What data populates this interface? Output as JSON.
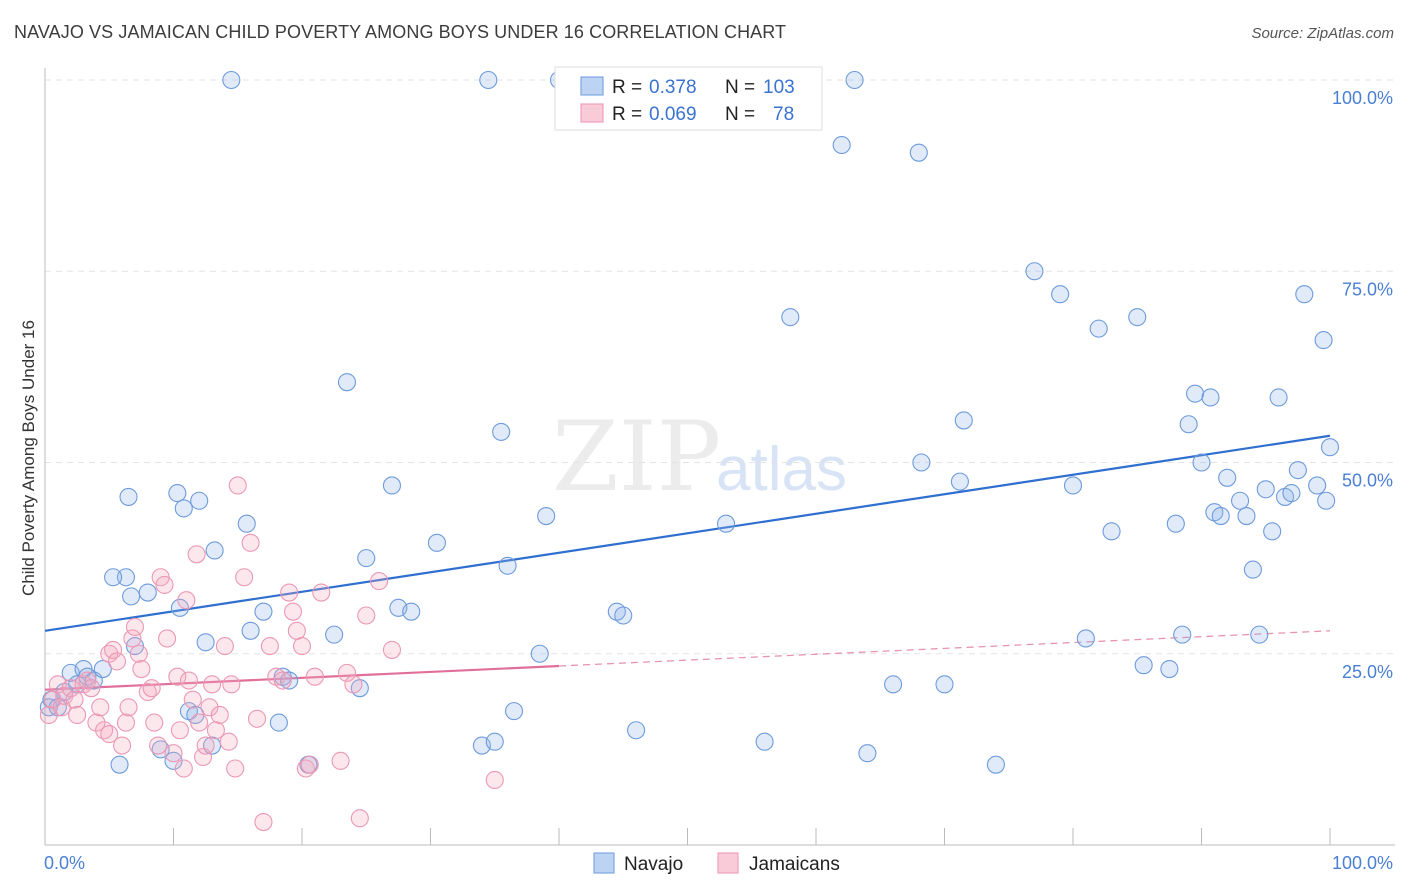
{
  "title": "NAVAJO VS JAMAICAN CHILD POVERTY AMONG BOYS UNDER 16 CORRELATION CHART",
  "source": "Source: ZipAtlas.com",
  "watermark": {
    "zip": "ZIP",
    "atlas": "atlas"
  },
  "chart_data": {
    "type": "scatter",
    "title": "NAVAJO VS JAMAICAN CHILD POVERTY AMONG BOYS UNDER 16 CORRELATION CHART",
    "ylabel": "Child Poverty Among Boys Under 16",
    "xlabel": "",
    "xlim": [
      0,
      100
    ],
    "ylim": [
      0,
      100
    ],
    "x_tick_labels": [
      "0.0%",
      "100.0%"
    ],
    "y_tick_labels": [
      "25.0%",
      "50.0%",
      "75.0%",
      "100.0%"
    ],
    "y_ticks": [
      25,
      50,
      75,
      100
    ],
    "grid": "horizontal dashed",
    "legend_position": "top-center",
    "stats": [
      {
        "series": "Navajo",
        "r_label": "R =",
        "r": "0.378",
        "n_label": "N =",
        "n": "103"
      },
      {
        "series": "Jamaicans",
        "r_label": "R =",
        "r": "0.069",
        "n_label": "N =",
        "n": "78"
      }
    ],
    "series": [
      {
        "name": "Navajo",
        "color": "#8fb4e8",
        "line_color": "#2f6fd0",
        "trend": {
          "x": [
            0,
            100
          ],
          "y": [
            28.0,
            53.5
          ],
          "style": "solid"
        },
        "points": [
          [
            0.3,
            18
          ],
          [
            0.5,
            19
          ],
          [
            1,
            18
          ],
          [
            1.5,
            20
          ],
          [
            2,
            22.5
          ],
          [
            2.5,
            21
          ],
          [
            3,
            23
          ],
          [
            3.3,
            22
          ],
          [
            3.8,
            21.5
          ],
          [
            4.5,
            23
          ],
          [
            5.8,
            10.5
          ],
          [
            6.3,
            35
          ],
          [
            5.3,
            35
          ],
          [
            6.5,
            45.5
          ],
          [
            6.7,
            32.5
          ],
          [
            7,
            26
          ],
          [
            8,
            33
          ],
          [
            9,
            12.5
          ],
          [
            10,
            11
          ],
          [
            10.3,
            46
          ],
          [
            10.8,
            44
          ],
          [
            10.5,
            31
          ],
          [
            11.2,
            17.5
          ],
          [
            11.7,
            17
          ],
          [
            12,
            45
          ],
          [
            12.5,
            26.5
          ],
          [
            13,
            13
          ],
          [
            13.2,
            38.5
          ],
          [
            14.5,
            100
          ],
          [
            15.7,
            42
          ],
          [
            16,
            28
          ],
          [
            17,
            30.5
          ],
          [
            18.2,
            16
          ],
          [
            18.5,
            22
          ],
          [
            19,
            21.5
          ],
          [
            20.5,
            10.5
          ],
          [
            22.5,
            27.5
          ],
          [
            23.5,
            60.5
          ],
          [
            24.5,
            20.5
          ],
          [
            25,
            37.5
          ],
          [
            27,
            47
          ],
          [
            27.5,
            31
          ],
          [
            28.5,
            30.5
          ],
          [
            30.5,
            39.5
          ],
          [
            34,
            13
          ],
          [
            34.5,
            100
          ],
          [
            35,
            13.5
          ],
          [
            35.5,
            54
          ],
          [
            36,
            36.5
          ],
          [
            36.5,
            17.5
          ],
          [
            38.5,
            25
          ],
          [
            39,
            43
          ],
          [
            40,
            100
          ],
          [
            44.5,
            30.5
          ],
          [
            45,
            30
          ],
          [
            46,
            15
          ],
          [
            53,
            42
          ],
          [
            56,
            13.5
          ],
          [
            58,
            69
          ],
          [
            62,
            91.5
          ],
          [
            63,
            100
          ],
          [
            64,
            12
          ],
          [
            66,
            21
          ],
          [
            68,
            90.5
          ],
          [
            68.2,
            50
          ],
          [
            70,
            21
          ],
          [
            71.2,
            47.5
          ],
          [
            71.5,
            55.5
          ],
          [
            74,
            10.5
          ],
          [
            77,
            75
          ],
          [
            79,
            72
          ],
          [
            80,
            47
          ],
          [
            81,
            27
          ],
          [
            82,
            67.5
          ],
          [
            83,
            41
          ],
          [
            85,
            69
          ],
          [
            85.5,
            23.5
          ],
          [
            87.5,
            23
          ],
          [
            88,
            42
          ],
          [
            88.5,
            27.5
          ],
          [
            89,
            55
          ],
          [
            89.5,
            59
          ],
          [
            90,
            50
          ],
          [
            90.7,
            58.5
          ],
          [
            91,
            43.5
          ],
          [
            91.5,
            43
          ],
          [
            92,
            48
          ],
          [
            93,
            45
          ],
          [
            93.5,
            43
          ],
          [
            94,
            36
          ],
          [
            94.5,
            27.5
          ],
          [
            95,
            46.5
          ],
          [
            95.5,
            41
          ],
          [
            96,
            58.5
          ],
          [
            96.5,
            45.5
          ],
          [
            97,
            46
          ],
          [
            97.5,
            49
          ],
          [
            98,
            72
          ],
          [
            99,
            47
          ],
          [
            99.5,
            66
          ],
          [
            99.7,
            45
          ],
          [
            100,
            52
          ]
        ]
      },
      {
        "name": "Jamaicans",
        "color": "#f3a8c0",
        "line_color": "#e0709a",
        "trend": {
          "x": [
            0,
            40
          ],
          "y": [
            20.3,
            23.4
          ],
          "style": "solid"
        },
        "trend_extension": {
          "x": [
            40,
            100
          ],
          "y": [
            23.4,
            28.0
          ],
          "style": "dashed"
        },
        "points": [
          [
            0.3,
            17
          ],
          [
            0.6,
            19
          ],
          [
            1,
            21
          ],
          [
            1.3,
            18
          ],
          [
            1.5,
            19.5
          ],
          [
            2,
            20.5
          ],
          [
            2.3,
            19
          ],
          [
            2.5,
            17
          ],
          [
            3,
            21
          ],
          [
            3.3,
            21.5
          ],
          [
            3.6,
            20.5
          ],
          [
            4,
            16
          ],
          [
            4.3,
            18
          ],
          [
            4.6,
            15
          ],
          [
            5,
            14.5
          ],
          [
            5,
            25
          ],
          [
            5.3,
            25.5
          ],
          [
            5.6,
            24
          ],
          [
            6,
            13
          ],
          [
            6.3,
            16
          ],
          [
            6.5,
            18
          ],
          [
            6.8,
            27
          ],
          [
            7,
            28.5
          ],
          [
            7.3,
            25
          ],
          [
            7.5,
            23
          ],
          [
            8,
            20
          ],
          [
            8.3,
            20.5
          ],
          [
            8.5,
            16
          ],
          [
            8.8,
            13
          ],
          [
            9,
            35
          ],
          [
            9.3,
            34
          ],
          [
            9.5,
            27
          ],
          [
            10,
            12
          ],
          [
            10.3,
            22
          ],
          [
            10.5,
            15
          ],
          [
            10.8,
            10
          ],
          [
            11,
            32
          ],
          [
            11.2,
            21.5
          ],
          [
            11.5,
            19
          ],
          [
            11.8,
            38
          ],
          [
            12,
            16
          ],
          [
            12.3,
            11.5
          ],
          [
            12.5,
            13
          ],
          [
            12.8,
            18
          ],
          [
            13,
            21
          ],
          [
            13.3,
            15
          ],
          [
            13.6,
            17
          ],
          [
            14,
            26
          ],
          [
            14.3,
            13.5
          ],
          [
            14.5,
            21
          ],
          [
            14.8,
            10
          ],
          [
            15,
            47
          ],
          [
            15.5,
            35
          ],
          [
            16,
            39.5
          ],
          [
            16.5,
            16.5
          ],
          [
            17,
            3
          ],
          [
            17.5,
            26
          ],
          [
            18,
            22
          ],
          [
            18.5,
            21.5
          ],
          [
            19,
            33
          ],
          [
            19.3,
            30.5
          ],
          [
            19.6,
            28
          ],
          [
            20,
            26
          ],
          [
            20.3,
            10
          ],
          [
            20.6,
            10.5
          ],
          [
            21,
            22
          ],
          [
            21.5,
            33
          ],
          [
            23,
            11
          ],
          [
            23.5,
            22.5
          ],
          [
            24,
            21
          ],
          [
            24.5,
            3.5
          ],
          [
            25,
            30
          ],
          [
            26,
            34.5
          ],
          [
            27,
            25.5
          ],
          [
            35,
            8.5
          ]
        ]
      }
    ]
  }
}
